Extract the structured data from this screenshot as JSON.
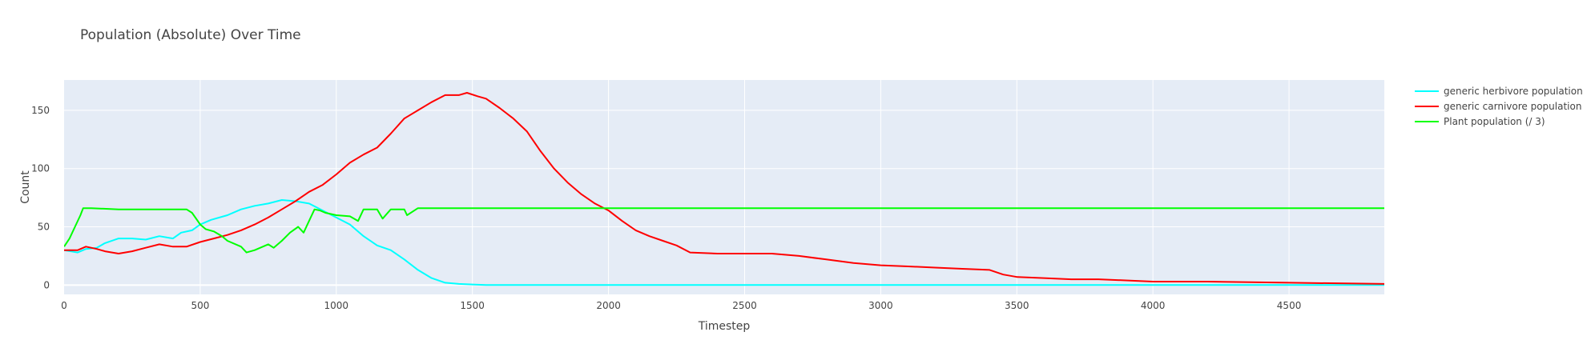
{
  "chart_data": {
    "type": "line",
    "title": "Population (Absolute) Over Time",
    "xlabel": "Timestep",
    "ylabel": "Count",
    "xlim": [
      0,
      4850
    ],
    "ylim": [
      -8,
      176
    ],
    "xticks": [
      0,
      500,
      1000,
      1500,
      2000,
      2500,
      3000,
      3500,
      4000,
      4500
    ],
    "yticks": [
      0,
      50,
      100,
      150
    ],
    "grid": true,
    "legend_position": "right",
    "series": [
      {
        "name": "generic herbivore population",
        "color": "#00FFFF",
        "x": [
          0,
          50,
          80,
          120,
          150,
          200,
          250,
          300,
          350,
          400,
          430,
          470,
          500,
          540,
          600,
          650,
          700,
          750,
          800,
          850,
          900,
          950,
          1000,
          1050,
          1100,
          1150,
          1200,
          1250,
          1300,
          1350,
          1400,
          1450,
          1500,
          1550,
          1600,
          2000,
          3000,
          4000,
          4850
        ],
        "y": [
          30,
          28,
          31,
          32,
          36,
          40,
          40,
          39,
          42,
          40,
          45,
          47,
          52,
          56,
          60,
          65,
          68,
          70,
          73,
          72,
          70,
          64,
          58,
          52,
          42,
          34,
          30,
          22,
          13,
          6,
          2,
          1,
          0.5,
          0,
          0,
          0,
          0,
          0,
          0
        ]
      },
      {
        "name": "generic carnivore population",
        "color": "#FF0000",
        "x": [
          0,
          50,
          80,
          120,
          150,
          200,
          250,
          300,
          350,
          400,
          450,
          500,
          550,
          600,
          650,
          700,
          750,
          800,
          850,
          900,
          950,
          1000,
          1050,
          1100,
          1150,
          1200,
          1250,
          1300,
          1350,
          1400,
          1450,
          1480,
          1520,
          1550,
          1600,
          1650,
          1700,
          1750,
          1800,
          1850,
          1900,
          1950,
          2000,
          2050,
          2100,
          2150,
          2200,
          2250,
          2300,
          2400,
          2500,
          2600,
          2700,
          2800,
          2900,
          3000,
          3100,
          3200,
          3300,
          3400,
          3450,
          3500,
          3600,
          3700,
          3800,
          3900,
          4000,
          4200,
          4500,
          4850
        ],
        "y": [
          30,
          30,
          33,
          31,
          29,
          27,
          29,
          32,
          35,
          33,
          33,
          37,
          40,
          43,
          47,
          52,
          58,
          65,
          72,
          80,
          86,
          95,
          105,
          112,
          118,
          130,
          143,
          150,
          157,
          163,
          163,
          165,
          162,
          160,
          152,
          143,
          132,
          115,
          100,
          88,
          78,
          70,
          64,
          55,
          47,
          42,
          38,
          34,
          28,
          27,
          27,
          27,
          25,
          22,
          19,
          17,
          16,
          15,
          14,
          13,
          9,
          7,
          6,
          5,
          5,
          4,
          3,
          3,
          2,
          1
        ]
      },
      {
        "name": "Plant population (/ 3)",
        "color": "#00FF00",
        "x": [
          0,
          20,
          40,
          60,
          70,
          100,
          200,
          300,
          400,
          450,
          470,
          500,
          520,
          550,
          580,
          600,
          650,
          670,
          700,
          750,
          770,
          800,
          830,
          860,
          880,
          900,
          920,
          940,
          960,
          980,
          1000,
          1050,
          1080,
          1100,
          1150,
          1170,
          1200,
          1250,
          1260,
          1300,
          1400,
          1500,
          2000,
          3000,
          4000,
          4850
        ],
        "y": [
          33,
          40,
          50,
          60,
          66,
          66,
          65,
          65,
          65,
          65,
          62,
          52,
          48,
          46,
          42,
          38,
          33,
          28,
          30,
          35,
          32,
          38,
          45,
          50,
          45,
          55,
          65,
          64,
          62,
          61,
          60,
          59,
          55,
          65,
          65,
          57,
          65,
          65,
          60,
          66,
          66,
          66,
          66,
          66,
          66,
          66
        ]
      }
    ]
  }
}
